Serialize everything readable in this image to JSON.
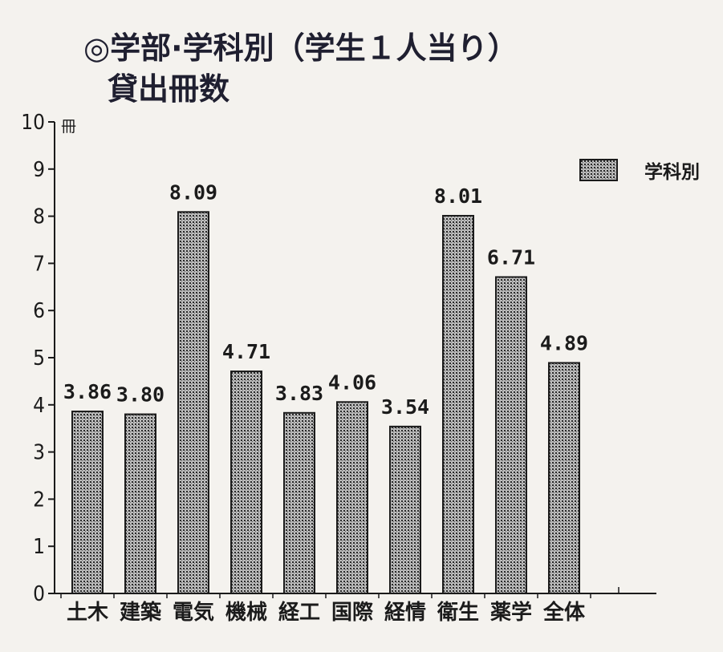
{
  "chart_data": {
    "type": "bar",
    "title": "◎学部·学科別（学生１人当り）",
    "subtitle": "貸出冊数",
    "ylabel": "冊",
    "xlabel": "",
    "ylim": [
      0,
      10
    ],
    "yticks": [
      "0",
      "1",
      "2",
      "3",
      "4",
      "5",
      "6",
      "7",
      "8",
      "9",
      "10"
    ],
    "categories": [
      "土木",
      "建築",
      "電気",
      "機械",
      "経工",
      "国際",
      "経情",
      "衛生",
      "薬学",
      "全体"
    ],
    "series": [
      {
        "name": "学科別",
        "values": [
          3.86,
          3.8,
          8.09,
          4.71,
          3.83,
          4.06,
          3.54,
          8.01,
          6.71,
          4.89
        ],
        "labels": [
          "3.86",
          "3.80",
          "8.09",
          "4.71",
          "3.83",
          "4.06",
          "3.54",
          "8.01",
          "6.71",
          "4.89"
        ]
      }
    ],
    "legend_position": "top-right",
    "grid": false
  },
  "colors": {
    "background": "#f4f2ee",
    "bar_fill": "#8a8a8a",
    "bar_stroke": "#1b1b1b",
    "ink": "#1b1b1b"
  }
}
